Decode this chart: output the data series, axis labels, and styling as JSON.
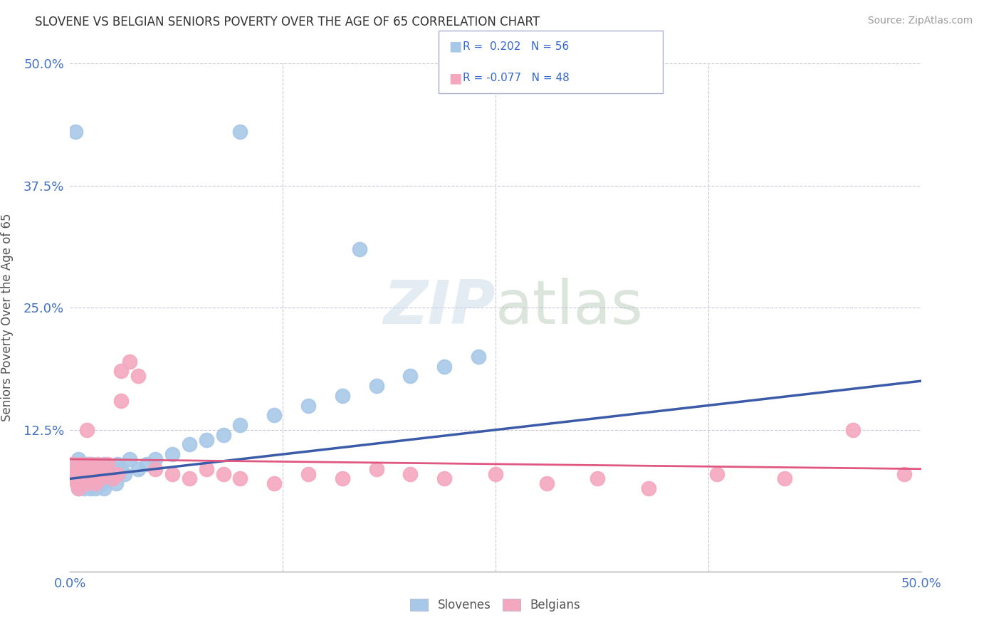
{
  "title": "SLOVENE VS BELGIAN SENIORS POVERTY OVER THE AGE OF 65 CORRELATION CHART",
  "source": "Source: ZipAtlas.com",
  "ylabel": "Seniors Poverty Over the Age of 65",
  "xlim": [
    0,
    0.5
  ],
  "ylim": [
    -0.02,
    0.5
  ],
  "slovene_color": "#A8C8E8",
  "belgian_color": "#F4A8C0",
  "trendline_slovene_color": "#3B5BA8",
  "trendline_belgian_color": "#E05880",
  "grid_color": "#C8C8D8",
  "background_color": "#FFFFFF",
  "slovene_x": [
    0.001,
    0.002,
    0.003,
    0.004,
    0.005,
    0.005,
    0.006,
    0.006,
    0.007,
    0.007,
    0.008,
    0.008,
    0.009,
    0.01,
    0.01,
    0.01,
    0.011,
    0.012,
    0.012,
    0.013,
    0.013,
    0.014,
    0.015,
    0.015,
    0.016,
    0.017,
    0.018,
    0.019,
    0.02,
    0.02,
    0.022,
    0.024,
    0.025,
    0.027,
    0.028,
    0.03,
    0.032,
    0.035,
    0.04,
    0.045,
    0.05,
    0.06,
    0.07,
    0.08,
    0.09,
    0.1,
    0.12,
    0.14,
    0.16,
    0.18,
    0.2,
    0.22,
    0.24,
    0.003,
    0.1,
    0.17
  ],
  "slovene_y": [
    0.085,
    0.08,
    0.09,
    0.075,
    0.095,
    0.065,
    0.085,
    0.07,
    0.08,
    0.09,
    0.075,
    0.065,
    0.085,
    0.09,
    0.07,
    0.08,
    0.075,
    0.085,
    0.065,
    0.09,
    0.075,
    0.07,
    0.085,
    0.065,
    0.08,
    0.075,
    0.085,
    0.07,
    0.09,
    0.065,
    0.08,
    0.075,
    0.085,
    0.07,
    0.09,
    0.085,
    0.08,
    0.095,
    0.085,
    0.09,
    0.095,
    0.1,
    0.11,
    0.115,
    0.12,
    0.13,
    0.14,
    0.15,
    0.16,
    0.17,
    0.18,
    0.19,
    0.2,
    0.43,
    0.43,
    0.31
  ],
  "belgian_x": [
    0.001,
    0.002,
    0.003,
    0.004,
    0.005,
    0.005,
    0.006,
    0.007,
    0.008,
    0.009,
    0.01,
    0.011,
    0.012,
    0.013,
    0.014,
    0.015,
    0.016,
    0.017,
    0.018,
    0.02,
    0.022,
    0.025,
    0.028,
    0.03,
    0.035,
    0.04,
    0.05,
    0.06,
    0.07,
    0.08,
    0.09,
    0.1,
    0.12,
    0.14,
    0.16,
    0.18,
    0.2,
    0.22,
    0.25,
    0.28,
    0.31,
    0.34,
    0.38,
    0.42,
    0.46,
    0.49,
    0.01,
    0.03
  ],
  "belgian_y": [
    0.09,
    0.075,
    0.08,
    0.07,
    0.085,
    0.065,
    0.09,
    0.08,
    0.075,
    0.085,
    0.07,
    0.09,
    0.08,
    0.075,
    0.085,
    0.07,
    0.09,
    0.08,
    0.075,
    0.085,
    0.09,
    0.075,
    0.08,
    0.185,
    0.195,
    0.18,
    0.085,
    0.08,
    0.075,
    0.085,
    0.08,
    0.075,
    0.07,
    0.08,
    0.075,
    0.085,
    0.08,
    0.075,
    0.08,
    0.07,
    0.075,
    0.065,
    0.08,
    0.075,
    0.125,
    0.08,
    0.125,
    0.155
  ],
  "trendline_slovene_x0": 0.0,
  "trendline_slovene_y0": 0.075,
  "trendline_slovene_x1": 0.5,
  "trendline_slovene_y1": 0.175,
  "trendline_belgian_x0": 0.0,
  "trendline_belgian_y0": 0.095,
  "trendline_belgian_x1": 0.5,
  "trendline_belgian_y1": 0.085
}
